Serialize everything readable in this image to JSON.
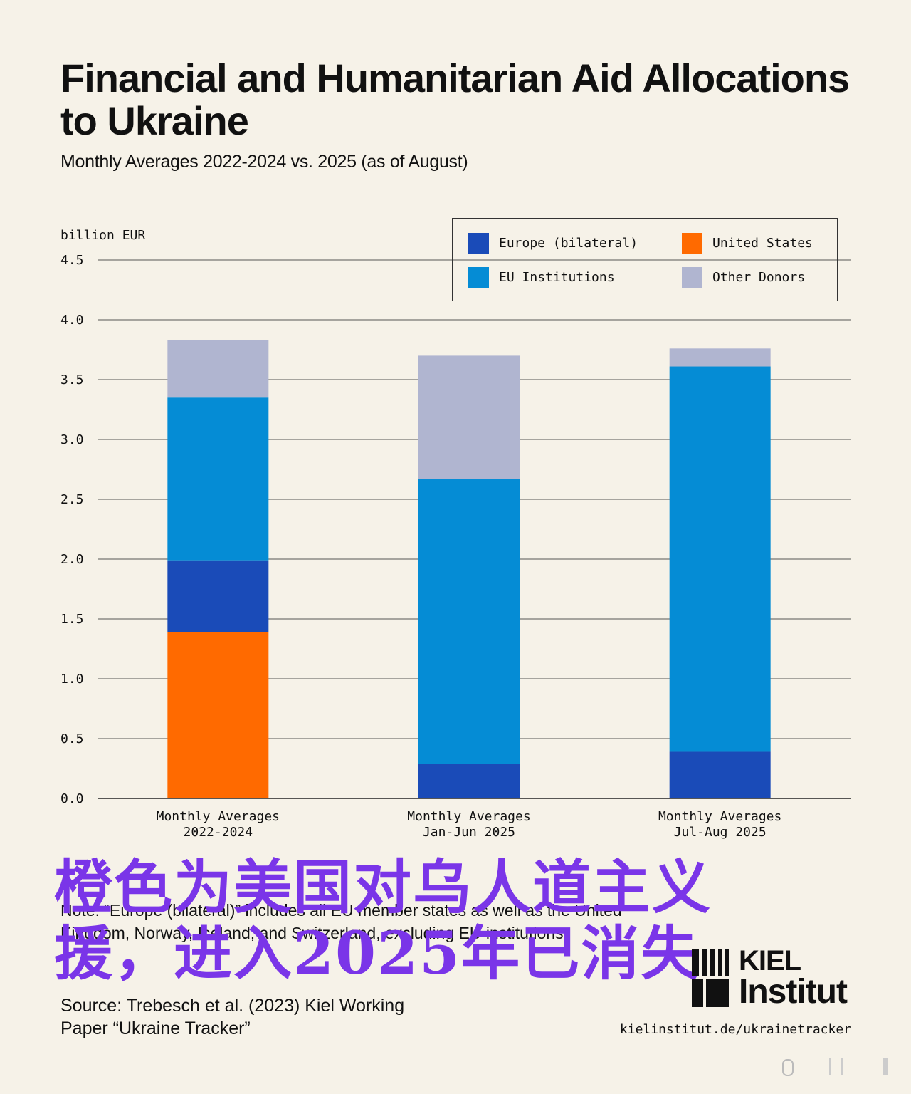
{
  "header": {
    "title": "Financial and Humanitarian Aid Allocations to Ukraine",
    "subtitle": "Monthly Averages 2022-2024 vs. 2025 (as of August)"
  },
  "colors": {
    "europe_bilateral": "#1a4bb8",
    "united_states": "#ff6a00",
    "eu_institutions": "#058cd5",
    "other_donors": "#b0b5d0",
    "overlay_text": "#7a35e8",
    "background": "#f6f2e8"
  },
  "chart_data": {
    "type": "bar",
    "stacked": true,
    "ylabel": "billion EUR",
    "ylim": [
      0,
      4.5
    ],
    "yticks": [
      "0.0",
      "0.5",
      "1.0",
      "1.5",
      "2.0",
      "2.5",
      "3.0",
      "3.5",
      "4.0",
      "4.5"
    ],
    "grid": true,
    "legend_position": "top-right",
    "categories": [
      [
        "Monthly Averages",
        "2022-2024"
      ],
      [
        "Monthly Averages",
        "Jan-Jun 2025"
      ],
      [
        "Monthly Averages",
        "Jul-Aug 2025"
      ]
    ],
    "series": [
      {
        "name": "United States",
        "color": "#ff6a00",
        "values": [
          1.39,
          0.0,
          0.0
        ]
      },
      {
        "name": "Europe (bilateral)",
        "color": "#1a4bb8",
        "values": [
          0.6,
          0.29,
          0.39
        ]
      },
      {
        "name": "EU Institutions",
        "color": "#058cd5",
        "values": [
          1.36,
          2.38,
          3.22
        ]
      },
      {
        "name": "Other Donors",
        "color": "#b0b5d0",
        "values": [
          0.48,
          1.03,
          0.15
        ]
      }
    ]
  },
  "legend": {
    "items": [
      "Europe (bilateral)",
      "United States",
      "EU Institutions",
      "Other Donors"
    ]
  },
  "note": "Note: “Europe (bilateral)” includes all EU member states as well as the United Kingdom, Norway, Iceland, and Switzerland, excluding EU institutions.",
  "overlay": {
    "line1": "橙色为美国对乌人道主义",
    "line2": "援，进入2025年已消失"
  },
  "source": {
    "line1": "Source: Trebesch et al. (2023) Kiel Working",
    "line2": "Paper “Ukraine Tracker”"
  },
  "logo": {
    "line1": "KIEL",
    "line2": "Institut"
  },
  "url": "kielinstitut.de/ukrainetracker"
}
